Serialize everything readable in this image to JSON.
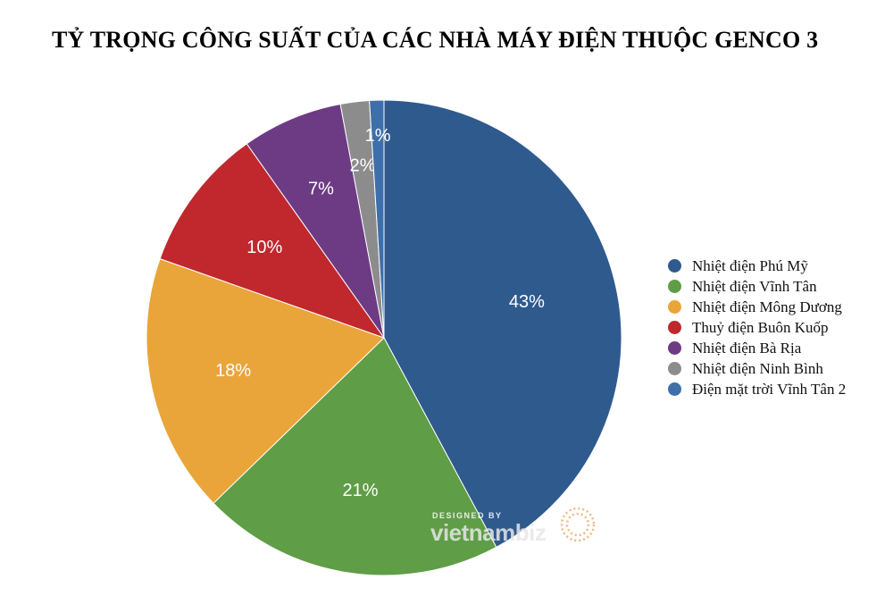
{
  "title": "TỶ TRỌNG CÔNG SUẤT CỦA CÁC NHÀ MÁY ĐIỆN THUỘC GENCO 3",
  "watermark": {
    "line1": "DESIGNED BY",
    "brand": "vietnambiz"
  },
  "chart_data": {
    "type": "pie",
    "title": "TỶ TRỌNG CÔNG SUẤT CỦA CÁC NHÀ MÁY ĐIỆN THUỘC GENCO 3",
    "unit": "%",
    "legend_position": "right",
    "slices": [
      {
        "label": "Nhiệt điện Phú Mỹ",
        "value": 43,
        "display": "43%",
        "color": "#2F5A8E"
      },
      {
        "label": "Nhiệt điện Vĩnh Tân",
        "value": 21,
        "display": "21%",
        "color": "#5F9D46"
      },
      {
        "label": "Nhiệt điện Mông Dương",
        "value": 18,
        "display": "18%",
        "color": "#E9A53A"
      },
      {
        "label": "Thuỷ điện Buôn Kuốp",
        "value": 10,
        "display": "10%",
        "color": "#C0282D"
      },
      {
        "label": "Nhiệt điện Bà Rịa",
        "value": 7,
        "display": "7%",
        "color": "#6D3B84"
      },
      {
        "label": "Nhiệt điện Ninh Bình",
        "value": 2,
        "display": "2%",
        "color": "#8C8C8C"
      },
      {
        "label": "Điện mặt trời Vĩnh Tân 2",
        "value": 1,
        "display": "1%",
        "color": "#3E6FAA"
      }
    ]
  }
}
